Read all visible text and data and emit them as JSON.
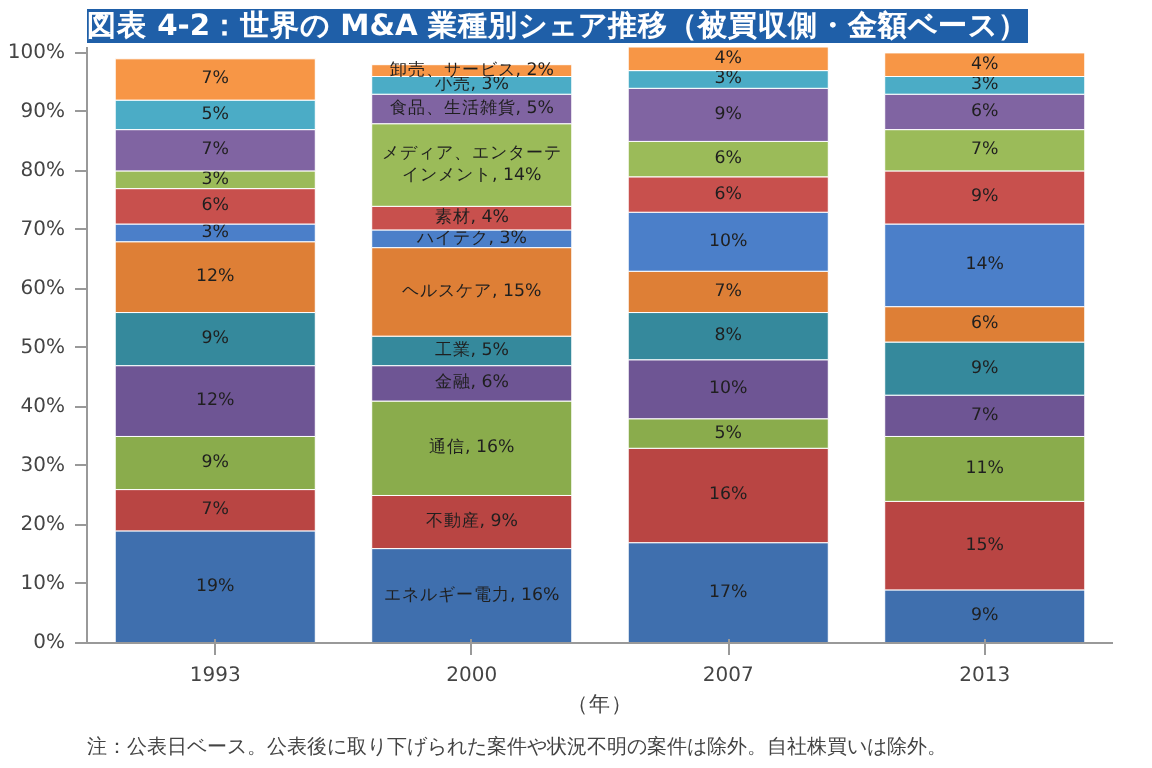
{
  "chart_data": {
    "type": "bar",
    "stacked": true,
    "title": "図表 4-2：世界の M&A 業種別シェア推移（被買収側・金額ベース）",
    "xlabel": "（年）",
    "categories": [
      "1993",
      "2000",
      "2007",
      "2013"
    ],
    "ylim": [
      0,
      101
    ],
    "yticks": [
      {
        "value": 0,
        "label": "0%"
      },
      {
        "value": 10,
        "label": "10%"
      },
      {
        "value": 20,
        "label": "20%"
      },
      {
        "value": 30,
        "label": "30%"
      },
      {
        "value": 40,
        "label": "40%"
      },
      {
        "value": 50,
        "label": "50%"
      },
      {
        "value": 60,
        "label": "60%"
      },
      {
        "value": 70,
        "label": "70%"
      },
      {
        "value": 80,
        "label": "80%"
      },
      {
        "value": 90,
        "label": "90%"
      },
      {
        "value": 100,
        "label": "100%"
      }
    ],
    "grid": false,
    "series": [
      {
        "color": "#3f6fae",
        "values": [
          19,
          16,
          17,
          9
        ],
        "value_labels": [
          "19%",
          "エネルギー電力, 16%",
          "17%",
          "9%"
        ]
      },
      {
        "color": "#b94543",
        "values": [
          7,
          9,
          16,
          15
        ],
        "value_labels": [
          "7%",
          "不動産, 9%",
          "16%",
          "15%"
        ]
      },
      {
        "color": "#8aac4c",
        "values": [
          9,
          16,
          5,
          11
        ],
        "value_labels": [
          "9%",
          "通信, 16%",
          "5%",
          "11%"
        ]
      },
      {
        "color": "#6e5594",
        "values": [
          12,
          6,
          10,
          7
        ],
        "value_labels": [
          "12%",
          "金融, 6%",
          "10%",
          "7%"
        ]
      },
      {
        "color": "#35899c",
        "values": [
          9,
          5,
          8,
          9
        ],
        "value_labels": [
          "9%",
          "工業, 5%",
          "8%",
          "9%"
        ]
      },
      {
        "color": "#de7f36",
        "values": [
          12,
          15,
          7,
          6
        ],
        "value_labels": [
          "12%",
          "ヘルスケア, 15%",
          "7%",
          "6%"
        ]
      },
      {
        "color": "#4b7fc9",
        "values": [
          3,
          3,
          10,
          14
        ],
        "value_labels": [
          "3%",
          "ハイテク, 3%",
          "10%",
          "14%"
        ]
      },
      {
        "color": "#c8504d",
        "values": [
          6,
          4,
          6,
          9
        ],
        "value_labels": [
          "6%",
          "素材, 4%",
          "6%",
          "9%"
        ]
      },
      {
        "color": "#9bbb59",
        "values": [
          3,
          14,
          6,
          7
        ],
        "value_labels": [
          "3%",
          "メディア、エンターテインメント, 14%",
          "6%",
          "7%"
        ]
      },
      {
        "color": "#8064a2",
        "values": [
          7,
          5,
          9,
          6
        ],
        "value_labels": [
          "7%",
          "食品、生活雑貨, 5%",
          "9%",
          "6%"
        ]
      },
      {
        "color": "#4bacc6",
        "values": [
          5,
          3,
          3,
          3
        ],
        "value_labels": [
          "5%",
          "小売, 3%",
          "3%",
          "3%"
        ]
      },
      {
        "color": "#f79646",
        "values": [
          7,
          2,
          4,
          4
        ],
        "value_labels": [
          "7%",
          "卸売、サービス, 2%",
          "4%",
          "4%"
        ]
      }
    ],
    "annotations": [
      "注：公表日ベース。公表後に取り下げられた案件や状況不明の案件は除外。自社株買いは除外。"
    ]
  }
}
